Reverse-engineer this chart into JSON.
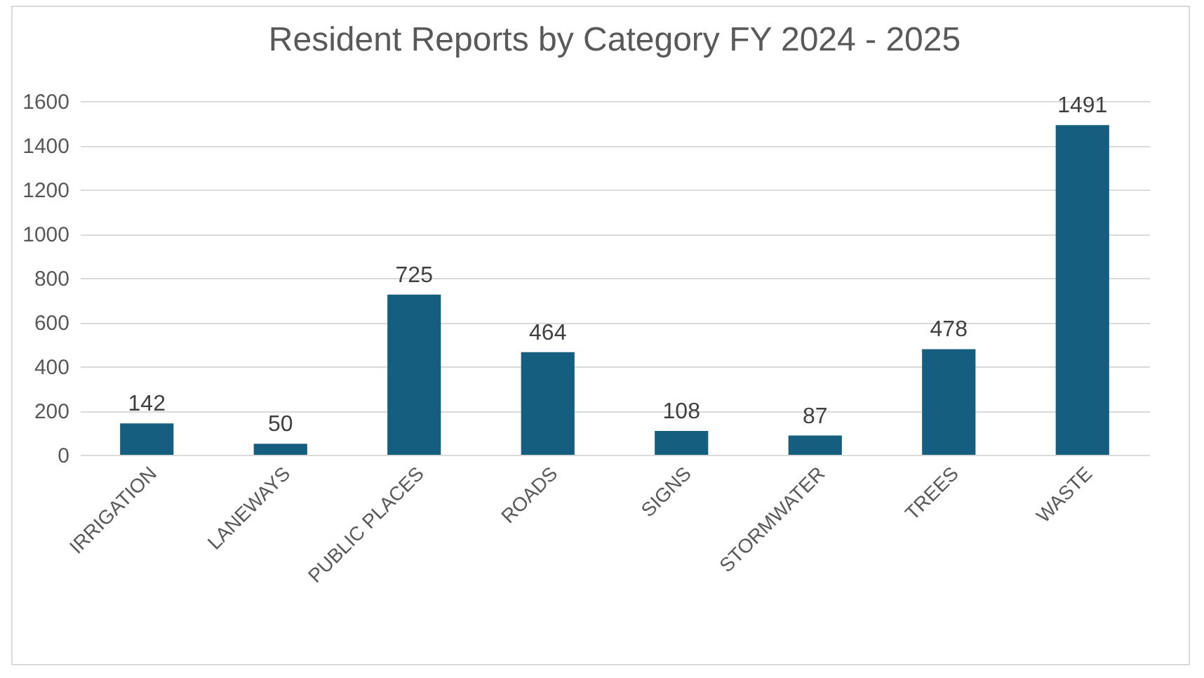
{
  "chart_data": {
    "type": "bar",
    "title": "Resident Reports by Category FY 2024 - 2025",
    "categories": [
      "IRRIGATION",
      "LANEWAYS",
      "PUBLIC PLACES",
      "ROADS",
      "SIGNS",
      "STORMWATER",
      "TREES",
      "WASTE"
    ],
    "values": [
      142,
      50,
      725,
      464,
      108,
      87,
      478,
      1491
    ],
    "color": "#155e80",
    "ylim": [
      0,
      1600
    ],
    "yticks": [
      0,
      200,
      400,
      600,
      800,
      1000,
      1200,
      1400,
      1600
    ],
    "grid": "y",
    "data_labels": true
  }
}
